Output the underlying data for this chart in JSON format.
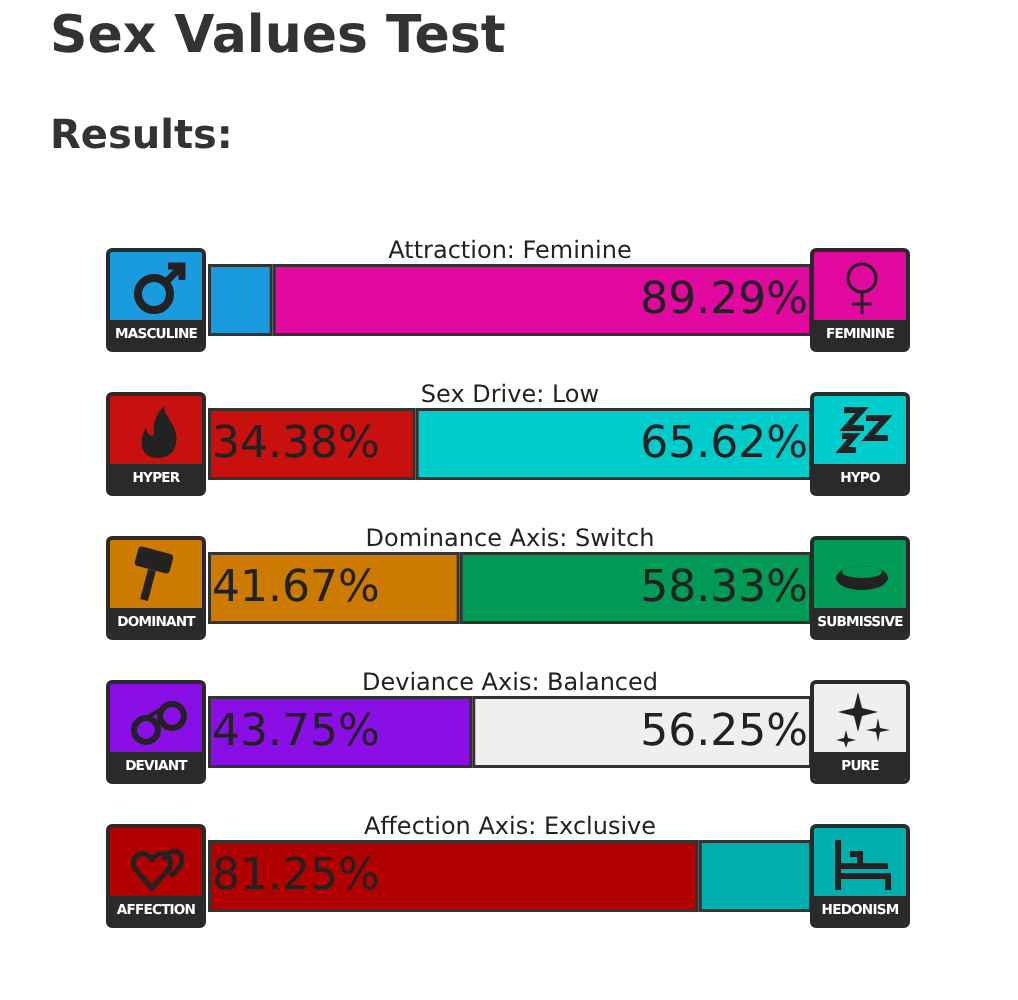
{
  "chart_data": {
    "type": "bar",
    "orientation": "horizontal",
    "stacked": true,
    "title": "Sex Values Test",
    "subtitle": "Results:",
    "categories": [
      "Attraction: Feminine",
      "Sex Drive: Low",
      "Dominance Axis: Switch",
      "Deviance Axis: Balanced",
      "Affection Axis: Exclusive"
    ],
    "xlim": [
      0,
      100
    ],
    "tick_labels": "y",
    "series": [
      {
        "colors": [
          "#1a9be0",
          "#c8110e",
          "#cc7a00",
          "#8a0fe6",
          "#b00000"
        ],
        "values": [
          10.71,
          34.38,
          41.67,
          43.75,
          81.25
        ],
        "value_labels": [
          null,
          "34.38%",
          "41.67%",
          "43.75%",
          "81.25%"
        ]
      },
      {
        "colors": [
          "#e0089e",
          "#00cccc",
          "#009955",
          "#efefef",
          "#00aeae"
        ],
        "values": [
          89.29,
          65.62,
          58.33,
          56.25,
          18.75
        ],
        "value_labels": [
          "89.29%",
          "65.62%",
          "58.33%",
          "56.25%",
          null
        ]
      }
    ],
    "annotations": [
      "MASCULINE",
      "FEMININE",
      "HYPER",
      "HYPO",
      "DOMINANT",
      "SUBMISSIVE",
      "DEVIANT",
      "PURE",
      "AFFECTION",
      "HEDONISM"
    ]
  }
}
